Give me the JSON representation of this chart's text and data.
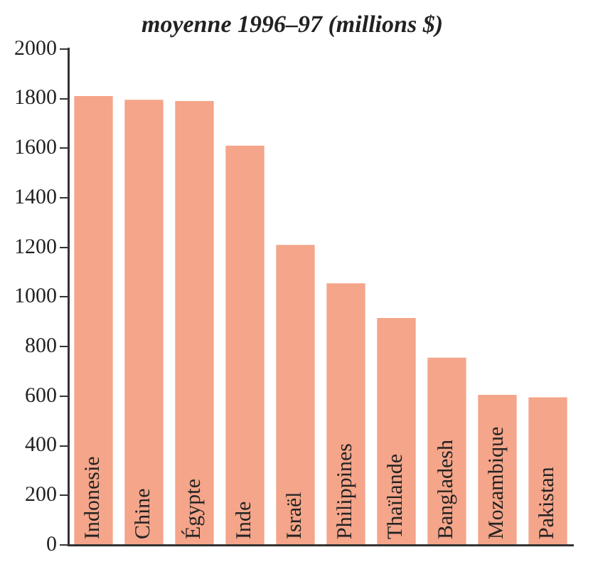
{
  "chart_data": {
    "type": "bar",
    "title": "moyenne 1996–97 (millions $)",
    "categories": [
      "Indonesie",
      "Chine",
      "Égypte",
      "Inde",
      "Israël",
      "Philippines",
      "Thaïlande",
      "Bangladesh",
      "Mozambique",
      "Pakistan"
    ],
    "values": [
      1810,
      1795,
      1790,
      1610,
      1210,
      1055,
      915,
      755,
      605,
      595
    ],
    "color": "#f4a58a",
    "ylim": [
      0,
      2000
    ],
    "yticks": [
      0,
      200,
      400,
      600,
      800,
      1000,
      1200,
      1400,
      1600,
      1800,
      2000
    ],
    "grid": false
  }
}
